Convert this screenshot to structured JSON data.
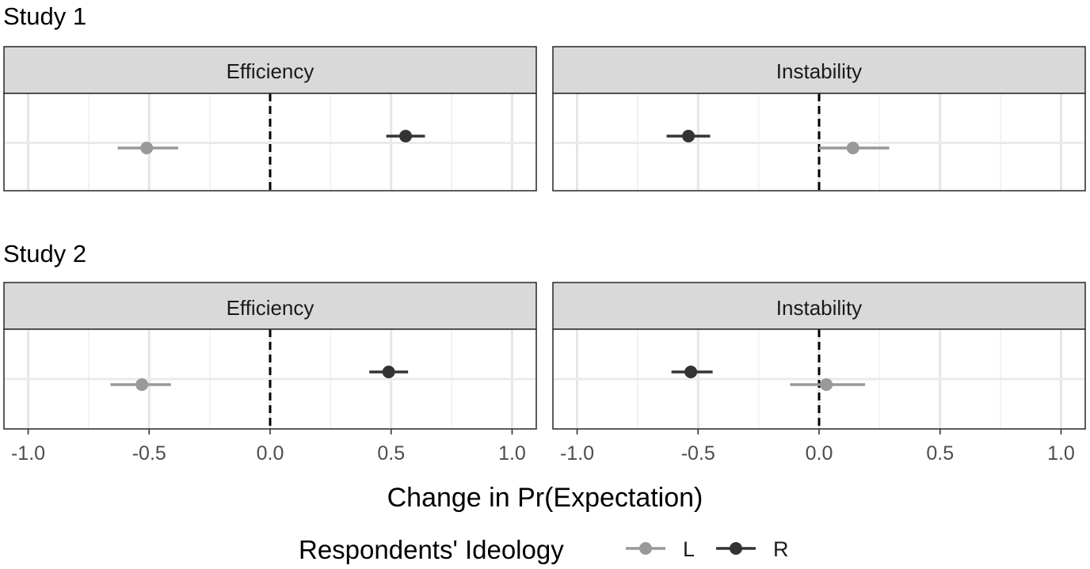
{
  "chart_data": {
    "type": "scatter",
    "subtype": "point-range (coefficient plot) with horizontal error bars, small multiples",
    "xlabel": "Change in Pr(Expectation)",
    "xlim": [
      -1.1,
      1.1
    ],
    "x_ticks": [
      -1.0,
      -0.5,
      0.0,
      0.5,
      1.0
    ],
    "x_tick_labels": [
      "-1.0",
      "-0.5",
      "0.0",
      "0.5",
      "1.0"
    ],
    "reference_line": {
      "x": 0,
      "style": "dashed",
      "color": "#000000"
    },
    "grid": true,
    "legend": {
      "title": "Respondents' Ideology",
      "placement": "bottom",
      "entries": [
        {
          "label": "L",
          "color": "#999999"
        },
        {
          "label": "R",
          "color": "#333333"
        }
      ]
    },
    "studies": [
      {
        "title": "Study 1",
        "panels": [
          {
            "facet": "Efficiency",
            "series": [
              {
                "name": "L",
                "estimate": -0.51,
                "lower": -0.63,
                "upper": -0.38
              },
              {
                "name": "R",
                "estimate": 0.56,
                "lower": 0.48,
                "upper": 0.64
              }
            ]
          },
          {
            "facet": "Instability",
            "series": [
              {
                "name": "L",
                "estimate": 0.14,
                "lower": 0.0,
                "upper": 0.29
              },
              {
                "name": "R",
                "estimate": -0.54,
                "lower": -0.63,
                "upper": -0.45
              }
            ]
          }
        ]
      },
      {
        "title": "Study 2",
        "panels": [
          {
            "facet": "Efficiency",
            "series": [
              {
                "name": "L",
                "estimate": -0.53,
                "lower": -0.66,
                "upper": -0.41
              },
              {
                "name": "R",
                "estimate": 0.49,
                "lower": 0.41,
                "upper": 0.57
              }
            ]
          },
          {
            "facet": "Instability",
            "series": [
              {
                "name": "L",
                "estimate": 0.03,
                "lower": -0.12,
                "upper": 0.19
              },
              {
                "name": "R",
                "estimate": -0.53,
                "lower": -0.61,
                "upper": -0.44
              }
            ]
          }
        ]
      }
    ]
  }
}
